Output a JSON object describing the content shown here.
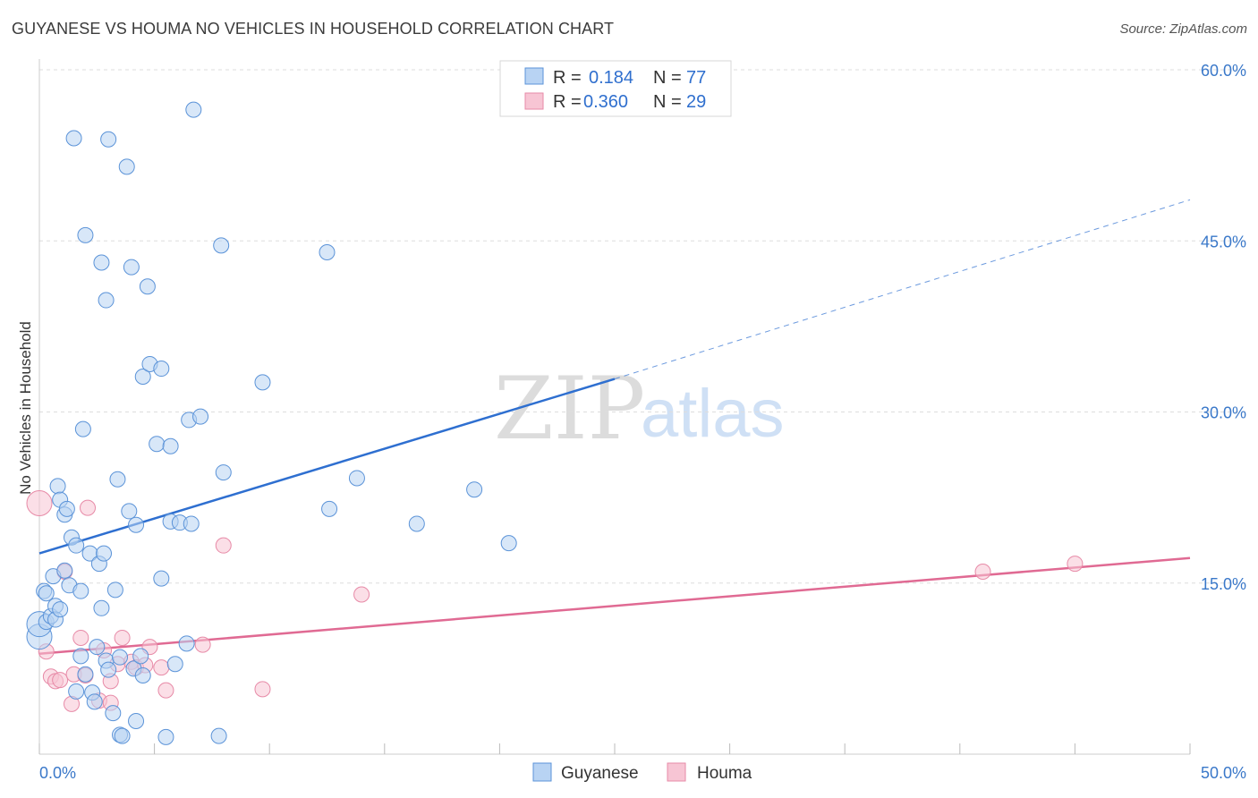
{
  "title": "GUYANESE VS HOUMA NO VEHICLES IN HOUSEHOLD CORRELATION CHART",
  "source": "Source: ZipAtlas.com",
  "watermark": {
    "zip": "ZIP",
    "atlas": "atlas"
  },
  "colors": {
    "guyanese_fill": "#b8d3f3",
    "guyanese_stroke": "#5b93d8",
    "guyanese_line": "#2e6fd0",
    "houma_fill": "#f7c5d4",
    "houma_stroke": "#e78aa7",
    "houma_line": "#e06a93",
    "grid": "#dddddd",
    "tick_text": "#3a78c9"
  },
  "legend": {
    "rows": [
      {
        "r_label": "R =",
        "r_value": "0.184",
        "n_label": "N =",
        "n_value": "77"
      },
      {
        "r_label": "R =",
        "r_value": "0.360",
        "n_label": "N =",
        "n_value": "29"
      }
    ]
  },
  "bottom_legend": [
    "Guyanese",
    "Houma"
  ],
  "chart_data": {
    "type": "scatter",
    "ylabel": "No Vehicles in Household",
    "xlabel": "",
    "xlim": [
      0,
      50
    ],
    "ylim": [
      0,
      60
    ],
    "x_tick_labels": [
      "0.0%",
      "50.0%"
    ],
    "y_ticks": [
      15,
      30,
      45,
      60
    ],
    "y_tick_labels": [
      "15.0%",
      "30.0%",
      "45.0%",
      "60.0%"
    ],
    "grid": true,
    "series": [
      {
        "name": "Guyanese",
        "color": "#b8d3f3",
        "points": [
          [
            0.0,
            10.3
          ],
          [
            0.0,
            11.4
          ],
          [
            0.2,
            14.3
          ],
          [
            0.3,
            14.1
          ],
          [
            0.3,
            11.6
          ],
          [
            0.5,
            12.1
          ],
          [
            0.6,
            15.6
          ],
          [
            0.7,
            13.0
          ],
          [
            0.7,
            11.8
          ],
          [
            0.8,
            23.5
          ],
          [
            0.9,
            22.3
          ],
          [
            0.9,
            12.7
          ],
          [
            1.1,
            21.0
          ],
          [
            1.2,
            21.5
          ],
          [
            1.1,
            16.1
          ],
          [
            1.3,
            14.8
          ],
          [
            1.4,
            19.0
          ],
          [
            1.6,
            18.3
          ],
          [
            1.6,
            5.5
          ],
          [
            1.8,
            8.6
          ],
          [
            1.8,
            14.3
          ],
          [
            1.9,
            28.5
          ],
          [
            2.0,
            45.5
          ],
          [
            2.0,
            7.0
          ],
          [
            2.2,
            17.6
          ],
          [
            2.3,
            5.4
          ],
          [
            2.4,
            4.6
          ],
          [
            2.5,
            9.4
          ],
          [
            2.6,
            16.7
          ],
          [
            2.7,
            12.8
          ],
          [
            2.7,
            43.1
          ],
          [
            2.8,
            17.6
          ],
          [
            2.9,
            8.2
          ],
          [
            2.9,
            39.8
          ],
          [
            3.0,
            7.4
          ],
          [
            3.2,
            3.6
          ],
          [
            3.3,
            14.4
          ],
          [
            3.4,
            24.1
          ],
          [
            3.5,
            1.7
          ],
          [
            3.5,
            8.5
          ],
          [
            3.6,
            1.6
          ],
          [
            3.8,
            51.5
          ],
          [
            3.9,
            21.3
          ],
          [
            4.0,
            42.7
          ],
          [
            4.1,
            7.5
          ],
          [
            4.2,
            2.9
          ],
          [
            4.2,
            20.1
          ],
          [
            4.4,
            8.6
          ],
          [
            4.5,
            6.9
          ],
          [
            4.5,
            33.1
          ],
          [
            4.7,
            41.0
          ],
          [
            4.8,
            34.2
          ],
          [
            5.1,
            27.2
          ],
          [
            5.3,
            33.8
          ],
          [
            5.3,
            15.4
          ],
          [
            5.5,
            1.5
          ],
          [
            5.7,
            27.0
          ],
          [
            5.7,
            20.4
          ],
          [
            5.9,
            7.9
          ],
          [
            6.1,
            20.3
          ],
          [
            6.4,
            9.7
          ],
          [
            6.5,
            29.3
          ],
          [
            6.6,
            20.2
          ],
          [
            6.7,
            56.5
          ],
          [
            7.0,
            29.6
          ],
          [
            7.8,
            1.6
          ],
          [
            7.9,
            44.6
          ],
          [
            8.0,
            24.7
          ],
          [
            9.7,
            32.6
          ],
          [
            12.5,
            44.0
          ],
          [
            12.6,
            21.5
          ],
          [
            13.8,
            24.2
          ],
          [
            16.4,
            20.2
          ],
          [
            18.9,
            23.2
          ],
          [
            20.4,
            18.5
          ],
          [
            1.5,
            54.0
          ],
          [
            3.0,
            53.9
          ]
        ],
        "trend_solid": [
          [
            0,
            17.6
          ],
          [
            25,
            32.9
          ]
        ],
        "trend_dashed": [
          [
            25,
            32.9
          ],
          [
            50,
            48.6
          ]
        ]
      },
      {
        "name": "Houma",
        "color": "#f7c5d4",
        "points": [
          [
            0.0,
            22.0
          ],
          [
            0.3,
            9.0
          ],
          [
            0.5,
            6.8
          ],
          [
            0.7,
            6.4
          ],
          [
            0.9,
            6.5
          ],
          [
            1.1,
            16.0
          ],
          [
            1.4,
            4.4
          ],
          [
            1.5,
            7.0
          ],
          [
            1.8,
            10.2
          ],
          [
            2.0,
            6.9
          ],
          [
            2.1,
            21.6
          ],
          [
            2.6,
            4.7
          ],
          [
            2.8,
            9.1
          ],
          [
            3.1,
            6.4
          ],
          [
            3.1,
            4.5
          ],
          [
            3.4,
            7.9
          ],
          [
            3.6,
            10.2
          ],
          [
            4.0,
            8.1
          ],
          [
            4.2,
            7.6
          ],
          [
            4.6,
            7.8
          ],
          [
            4.8,
            9.4
          ],
          [
            5.3,
            7.6
          ],
          [
            5.5,
            5.6
          ],
          [
            7.1,
            9.6
          ],
          [
            8.0,
            18.3
          ],
          [
            9.7,
            5.7
          ],
          [
            14.0,
            14.0
          ],
          [
            41.0,
            16.0
          ],
          [
            45.0,
            16.7
          ]
        ],
        "trend_solid": [
          [
            0,
            8.8
          ],
          [
            50,
            17.2
          ]
        ]
      }
    ]
  }
}
